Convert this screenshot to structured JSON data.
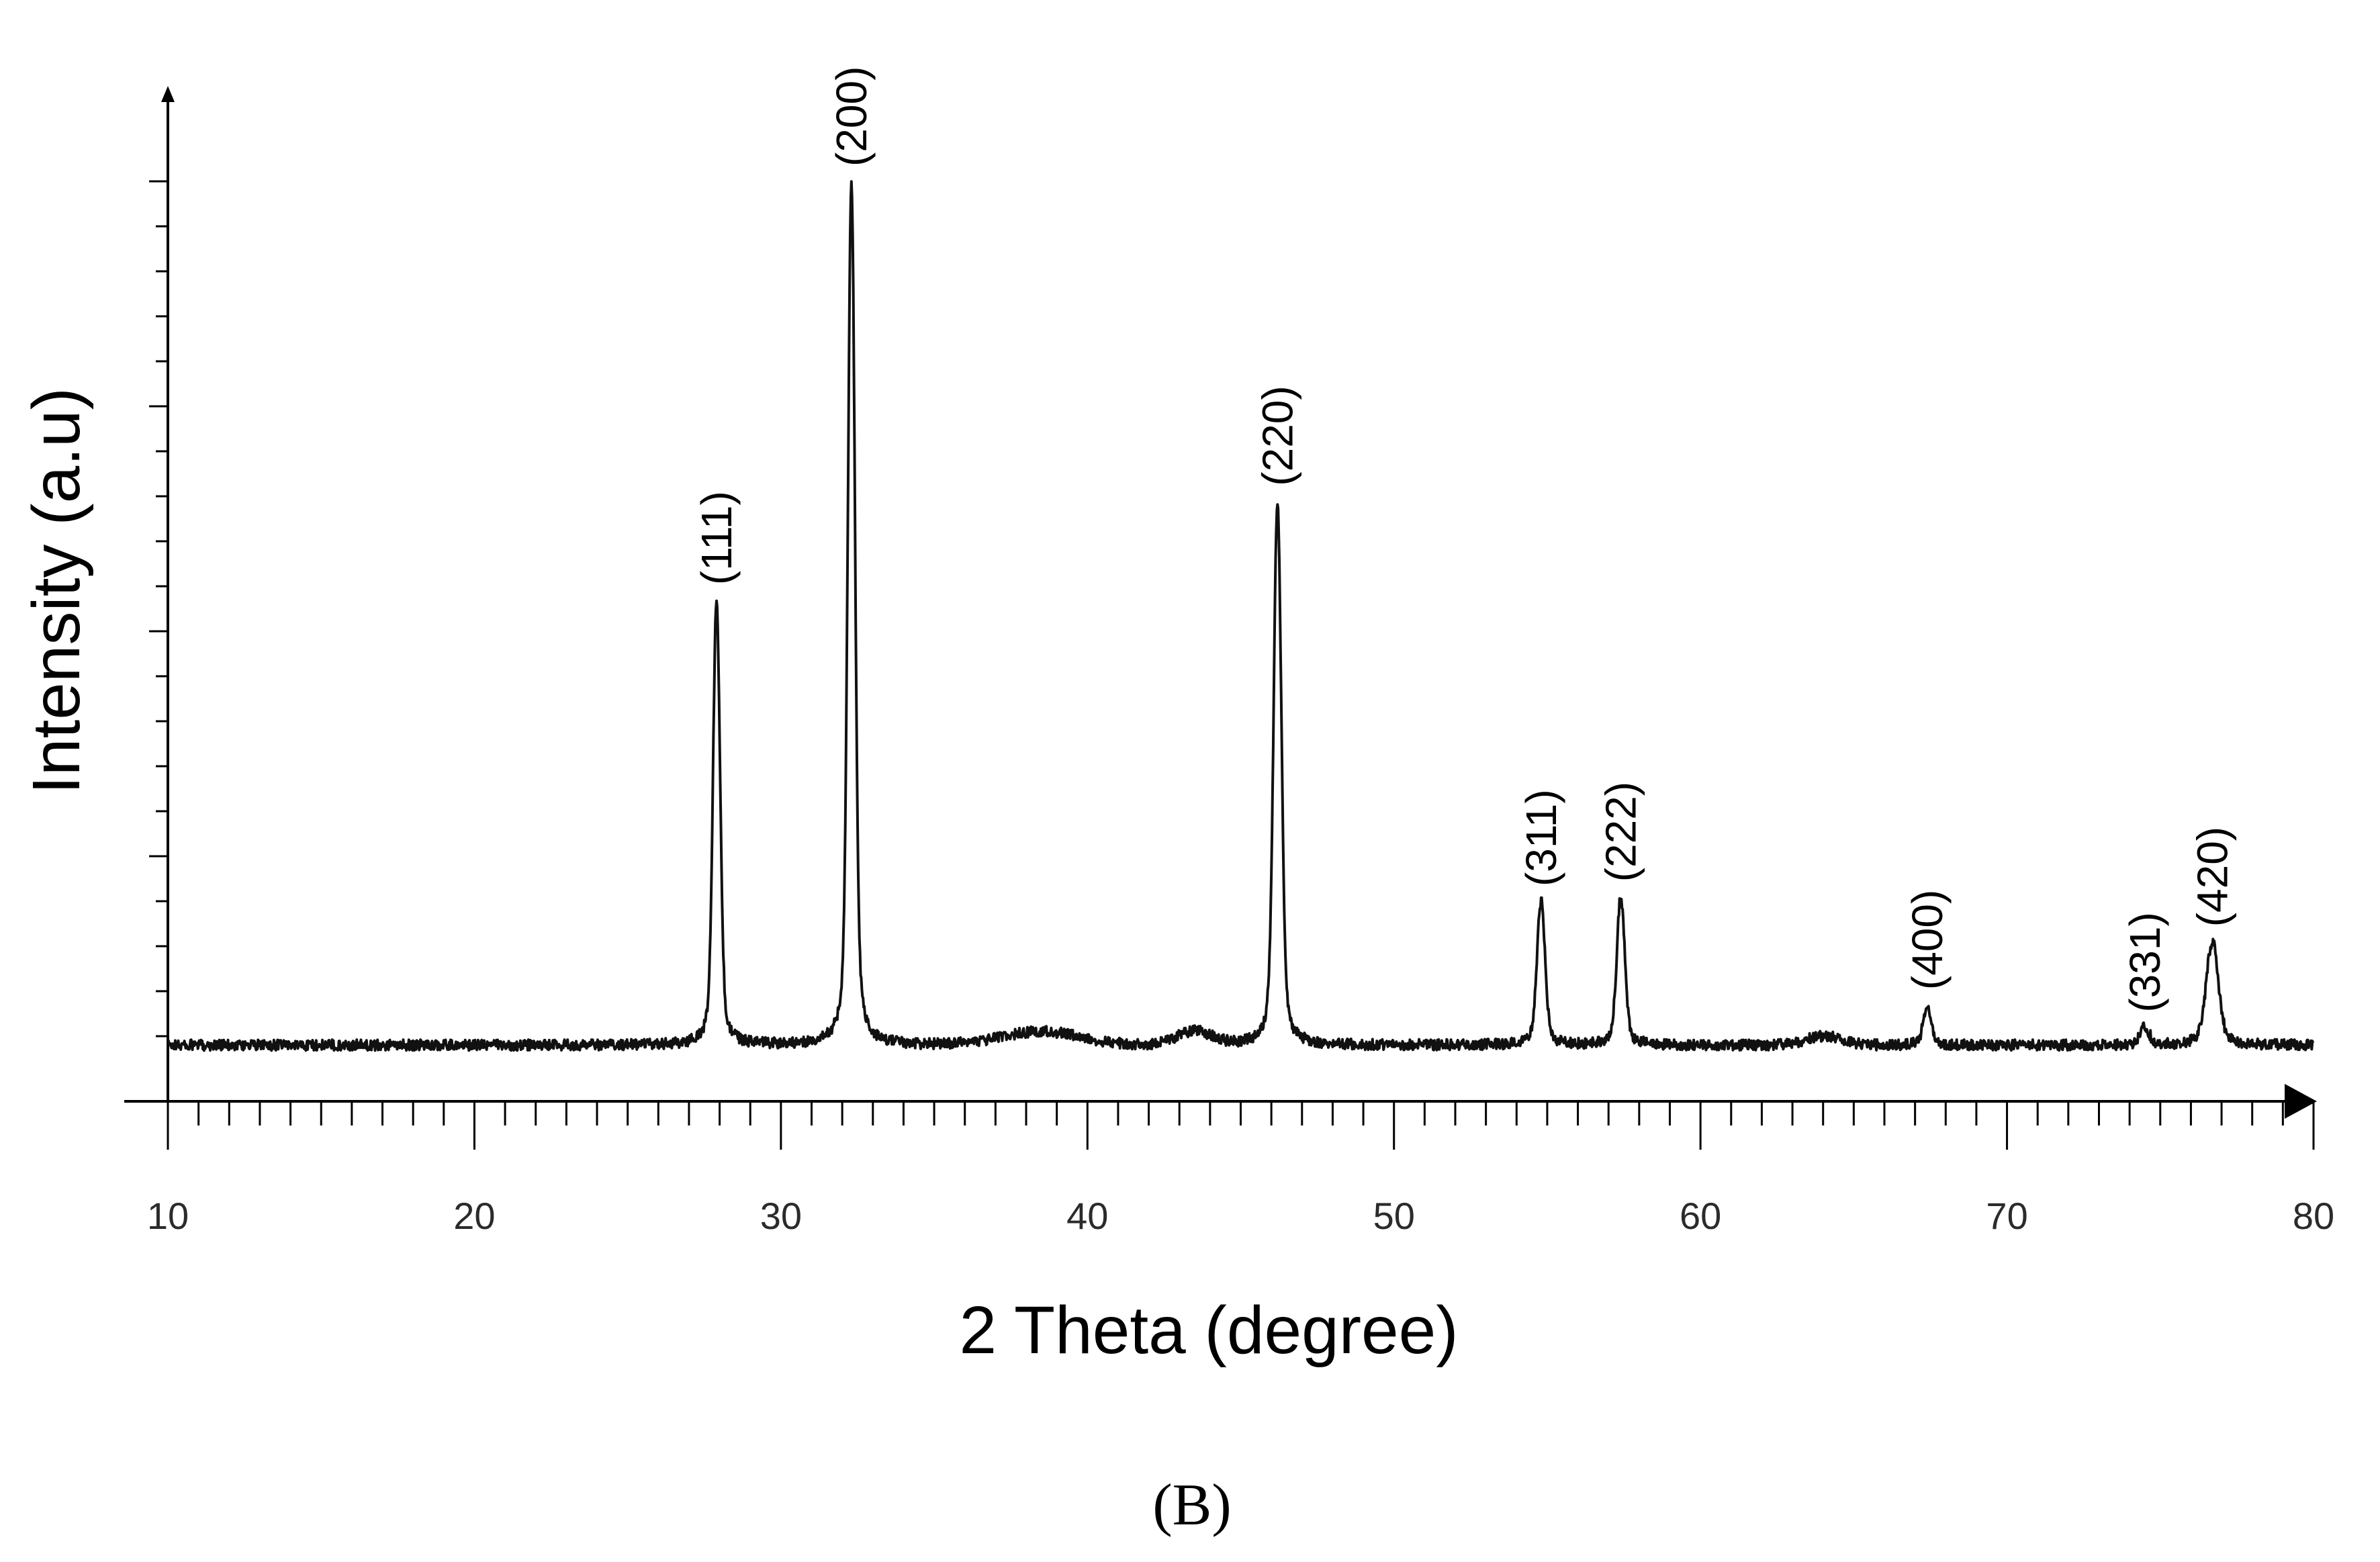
{
  "chart_data": {
    "type": "line",
    "xlabel": "2 Theta (degree)",
    "ylabel": "Intensity (a.u)",
    "panel_label": "(B)",
    "xlim": [
      10,
      80
    ],
    "ylim": [
      0,
      1
    ],
    "x_ticks": [
      10,
      20,
      30,
      40,
      50,
      60,
      70,
      80
    ],
    "x_minor_step": 1,
    "y_major_ticks": [
      0.25,
      0.5,
      0.75,
      1.0
    ],
    "y_minor_step": 0.05,
    "y_tick_labels_shown": false,
    "grid": false,
    "baseline": 0.04,
    "noise_amplitude": 0.006,
    "broad_humps": [
      {
        "center": 38.5,
        "height": 0.015,
        "width": 1.8
      },
      {
        "center": 43.5,
        "height": 0.015,
        "width": 0.8
      },
      {
        "center": 64.0,
        "height": 0.01,
        "width": 0.8
      }
    ],
    "peaks": [
      {
        "x": 27.9,
        "y": 0.535,
        "label": "(111)",
        "width": 0.22
      },
      {
        "x": 32.3,
        "y": 1.0,
        "label": "(200)",
        "width": 0.22
      },
      {
        "x": 46.2,
        "y": 0.645,
        "label": "(220)",
        "width": 0.24
      },
      {
        "x": 54.8,
        "y": 0.2,
        "label": "(311)",
        "width": 0.25
      },
      {
        "x": 57.4,
        "y": 0.205,
        "label": "(222)",
        "width": 0.25
      },
      {
        "x": 67.4,
        "y": 0.085,
        "label": "(400)",
        "width": 0.25
      },
      {
        "x": 74.5,
        "y": 0.06,
        "label": "(331)",
        "width": 0.28
      },
      {
        "x": 76.7,
        "y": 0.155,
        "label": "(420)",
        "width": 0.38
      }
    ]
  }
}
